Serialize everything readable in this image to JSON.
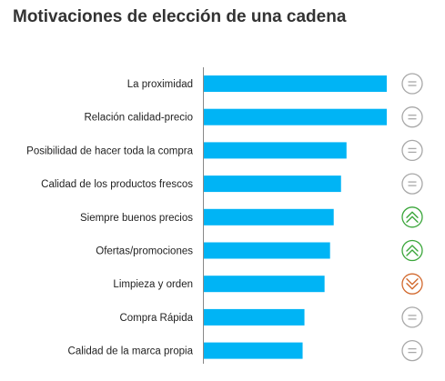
{
  "chart_data": {
    "type": "bar",
    "orientation": "horizontal",
    "title": "Motivaciones de elección de una cadena",
    "xlabel": "",
    "ylabel": "",
    "grid": false,
    "xlim": [
      0,
      100
    ],
    "categories": [
      "La proximidad",
      "Relación calidad-precio",
      "Posibilidad de hacer toda la compra",
      "Calidad de los productos frescos",
      "Siempre buenos precios",
      "Ofertas/promociones",
      "Limpieza y orden",
      "Compra Rápida",
      "Calidad de la marca propia"
    ],
    "values": [
      100,
      100,
      78,
      75,
      71,
      69,
      66,
      55,
      54
    ],
    "bar_color": "#00b4f5",
    "trends": [
      "equal",
      "equal",
      "equal",
      "equal",
      "up",
      "up",
      "down",
      "equal",
      "equal"
    ],
    "trend_icons": {
      "equal": {
        "icon": "equal-circle-icon",
        "color": "#a8a8a8"
      },
      "up": {
        "icon": "double-chevron-up-circle-icon",
        "color": "#3aa63a"
      },
      "down": {
        "icon": "double-chevron-down-circle-icon",
        "color": "#d2692e"
      }
    }
  }
}
